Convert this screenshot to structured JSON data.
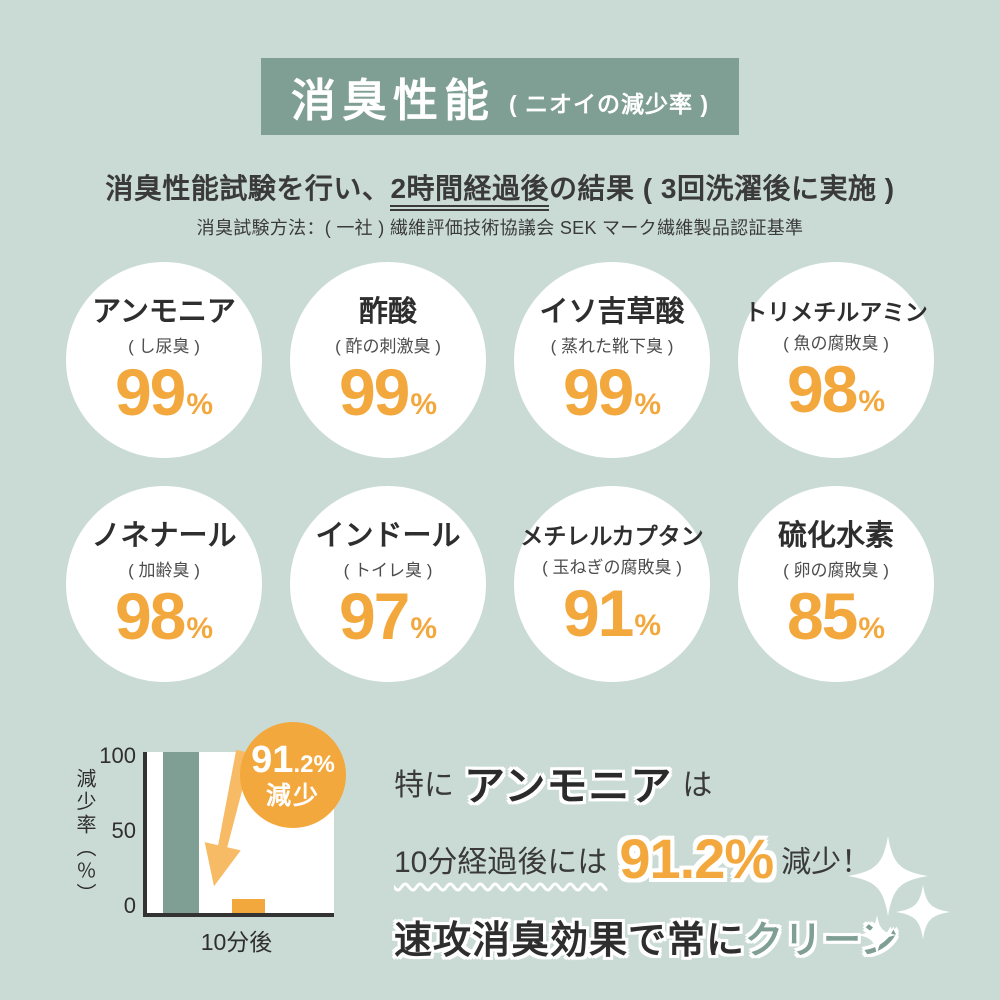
{
  "colors": {
    "bg": "#cadbd5",
    "teal": "#7f9e94",
    "orange": "#f3a83e",
    "arrow_orange": "#f6bb64",
    "dark": "#3a3a3a",
    "white": "#ffffff"
  },
  "header": {
    "title": "消臭性能",
    "paren": "( ニオイの減少率 )"
  },
  "intro": {
    "line1_pre": "消臭性能試験を行い、",
    "line1_underlined": "2時間経過後",
    "line1_post": "の結果 ( 3回洗濯後に実施 )",
    "line2": "消臭試験方法：( 一社 ) 繊維評価技術協議会 SEK マーク繊維製品認証基準"
  },
  "circles": [
    {
      "name": "アンモニア",
      "source": "( し尿臭 )",
      "value": "99",
      "unit": "%"
    },
    {
      "name": "酢酸",
      "source": "( 酢の刺激臭 )",
      "value": "99",
      "unit": "%"
    },
    {
      "name": "イソ吉草酸",
      "source": "( 蒸れた靴下臭 )",
      "value": "99",
      "unit": "%"
    },
    {
      "name": "トリメチルアミン",
      "source": "( 魚の腐敗臭 )",
      "value": "98",
      "unit": "%"
    },
    {
      "name": "ノネナール",
      "source": "( 加齢臭 )",
      "value": "98",
      "unit": "%"
    },
    {
      "name": "インドール",
      "source": "( トイレ臭 )",
      "value": "97",
      "unit": "%"
    },
    {
      "name": "メチレルカプタン",
      "source": "( 玉ねぎの腐敗臭 )",
      "value": "91",
      "unit": "%"
    },
    {
      "name": "硫化水素",
      "source": "( 卵の腐敗臭 )",
      "value": "85",
      "unit": "%"
    }
  ],
  "chart_data": [
    {
      "type": "table",
      "title": "消臭性能（ニオイの減少率）",
      "categories": [
        "アンモニア",
        "酢酸",
        "イソ吉草酸",
        "トリメチルアミン",
        "ノネナール",
        "インドール",
        "メチレルカプタン",
        "硫化水素"
      ],
      "values": [
        99,
        99,
        99,
        98,
        98,
        97,
        91,
        85
      ],
      "unit": "%"
    },
    {
      "type": "bar",
      "categories": [
        "",
        "10分後"
      ],
      "values": [
        100,
        8.8
      ],
      "ylabel": "減少率（％）",
      "xlabel": "",
      "ylim": [
        0,
        100
      ],
      "yticks": [
        0,
        50,
        100
      ],
      "grid": false,
      "legend_position": "none",
      "bar_colors": [
        "#7f9e94",
        "#f3a83e"
      ],
      "annotation": {
        "value_major": "91",
        "value_minor": ".2%",
        "label": "減少"
      }
    }
  ],
  "callout": {
    "line1_pre": "特に",
    "line1_em": "アンモニア",
    "line1_post": "は",
    "line2_pre": "10分経過後には",
    "line2_value": "91.2%",
    "line2_post": "減少！",
    "line3_main": "速攻消臭効果で常に",
    "line3_accent": "クリーン"
  },
  "icons": {
    "sparkle_icon": "✦",
    "arrow_down_icon": "↓"
  }
}
